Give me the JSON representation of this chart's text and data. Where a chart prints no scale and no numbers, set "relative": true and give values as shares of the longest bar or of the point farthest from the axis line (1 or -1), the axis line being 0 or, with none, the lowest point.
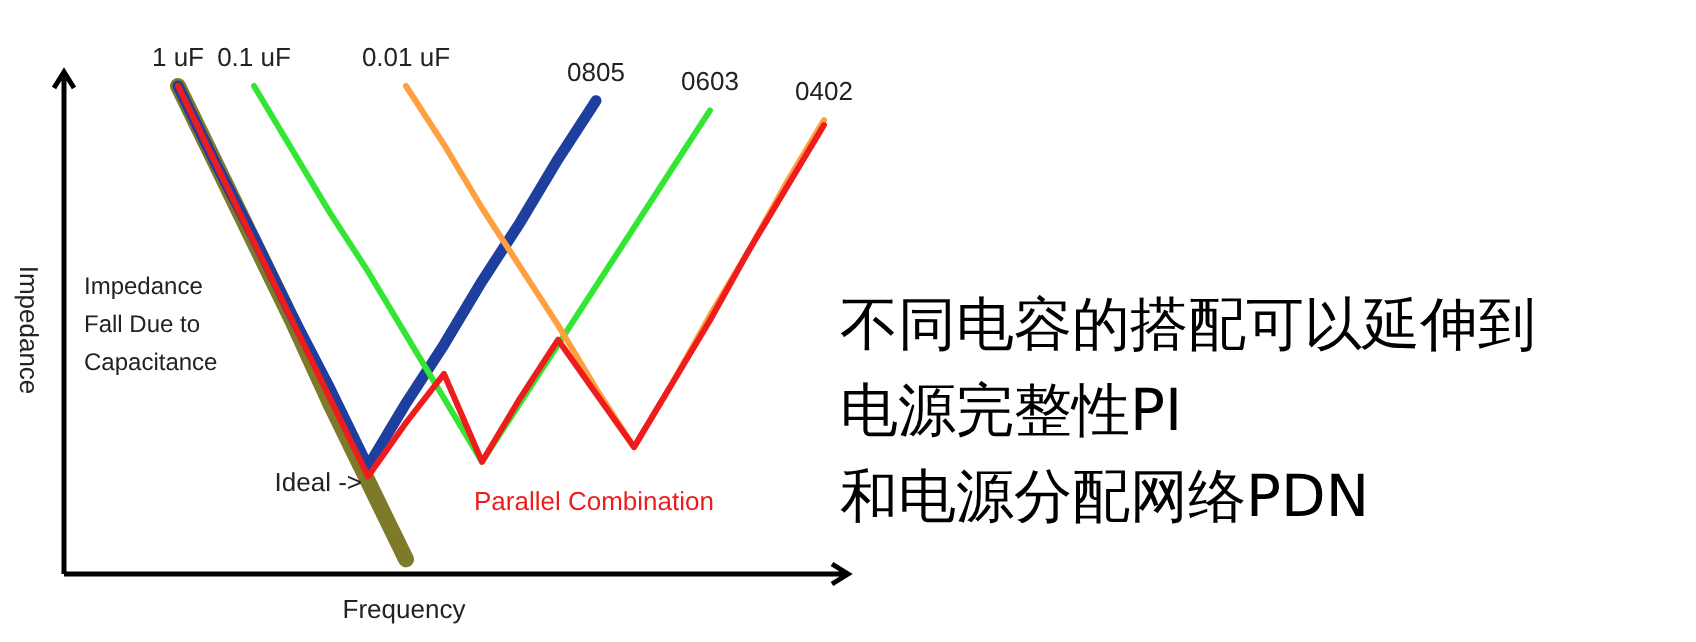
{
  "chart_data": {
    "type": "line",
    "relative": true,
    "xlabel": "Frequency",
    "ylabel": "Impedance",
    "categories": [
      null,
      null,
      null,
      null,
      null,
      null,
      null,
      null,
      null,
      null,
      null,
      null,
      null,
      null,
      null,
      null,
      null,
      null
    ],
    "series": [
      {
        "color": "#7f7a2a",
        "values": [
          1,
          0.84,
          0.68,
          0.52,
          0.35,
          0.19,
          0.03,
          null,
          null,
          null,
          null,
          null,
          null,
          null,
          null,
          null,
          null,
          null
        ]
      },
      {
        "color": "#1f3f9f",
        "values": [
          1,
          0.84,
          0.69,
          0.53,
          0.38,
          0.22,
          0.35,
          0.47,
          0.6,
          0.72,
          0.85,
          0.97,
          null,
          null,
          null,
          null,
          null,
          null
        ]
      },
      {
        "color": "#33e633",
        "values": [
          null,
          null,
          1,
          0.87,
          0.74,
          0.62,
          0.49,
          0.36,
          0.23,
          0.35,
          0.47,
          0.59,
          0.71,
          0.83,
          0.95,
          null,
          null,
          null
        ]
      },
      {
        "color": "#ffa040",
        "values": [
          null,
          null,
          null,
          null,
          null,
          null,
          1,
          0.88,
          0.75,
          0.63,
          0.51,
          0.38,
          0.26,
          0.39,
          0.53,
          0.66,
          0.8,
          0.93
        ]
      },
      {
        "name": "Parallel Combination",
        "color": "#ee1c1c",
        "values": [
          1,
          0.84,
          0.68,
          0.52,
          0.36,
          0.2,
          0.31,
          0.41,
          0.23,
          0.36,
          0.48,
          0.37,
          0.26,
          0.39,
          0.52,
          0.66,
          0.79,
          0.92
        ]
      }
    ],
    "annotations": [
      "1 uF",
      "0.1 uF",
      "0.01 uF",
      "0805",
      "0603",
      "0402",
      "Ideal ->",
      "Impedance\nFall Due to\nCapacitance",
      "不同电容的搭配可以延伸到",
      "电源完整性PI",
      "和电源分配网络PDN"
    ]
  }
}
